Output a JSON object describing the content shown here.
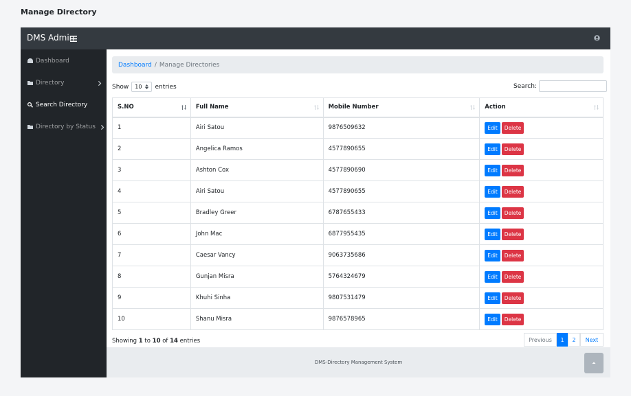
{
  "page_title": "Manage Directory",
  "brand": "DMS Admin",
  "sidebar": [
    {
      "label": "Dashboard"
    },
    {
      "label": "Directory"
    },
    {
      "label": "Search Directory"
    },
    {
      "label": "Directory by Status"
    }
  ],
  "breadcrumb": {
    "link": "Dashboard",
    "separator": "/",
    "current": "Manage Directories"
  },
  "length": {
    "before": "Show",
    "value": "10",
    "after": "entries"
  },
  "search_label": "Search:",
  "table": {
    "columns": [
      "S.NO",
      "Full Name",
      "Mobile Number",
      "Action"
    ],
    "rows": [
      [
        "1",
        "Airi Satou",
        "9876509632"
      ],
      [
        "2",
        "Angelica Ramos",
        "4577890655"
      ],
      [
        "3",
        "Ashton Cox",
        "4577890690"
      ],
      [
        "4",
        "Airi Satou",
        "4577890655"
      ],
      [
        "5",
        "Bradley Greer",
        "6787655433"
      ],
      [
        "6",
        "John Mac",
        "6877955435"
      ],
      [
        "7",
        "Caesar Vancy",
        "9063735686"
      ],
      [
        "8",
        "Gunjan Misra",
        "5764324679"
      ],
      [
        "9",
        "Khuhi Sinha",
        "9807531479"
      ],
      [
        "10",
        "Shanu Misra",
        "9876578965"
      ]
    ],
    "edit": "Edit",
    "delete": "Delete"
  },
  "info": {
    "prefix": "Showing",
    "start": "1",
    "to": "to",
    "end": "10",
    "of": "of",
    "total": "14",
    "suffix": "entries"
  },
  "pagination": [
    "Previous",
    "1",
    "2",
    "Next"
  ],
  "footer": "DMS-Directory Management System"
}
